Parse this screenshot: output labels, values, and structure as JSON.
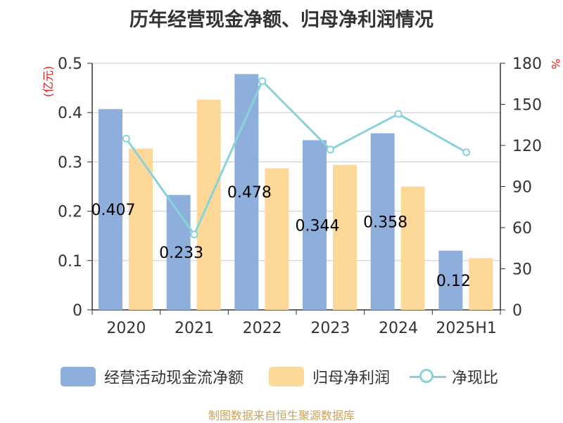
{
  "title": "历年经营现金净额、归母净利润情况",
  "source": "制图数据来自恒生聚源数据库",
  "colors": {
    "operating_cf": "#8eaedb",
    "net_profit": "#fdd898",
    "ratio": "#88d3d9",
    "axis": "#333333",
    "grid": "#cccccc",
    "unit_label": "#e02020",
    "source": "#c8a45c"
  },
  "chart_data": {
    "type": "bar",
    "title": "历年经营现金净额、归母净利润情况",
    "categories": [
      "2020",
      "2021",
      "2022",
      "2023",
      "2024",
      "2025H1"
    ],
    "y_left": {
      "label": "(亿元)",
      "min": 0,
      "max": 0.5,
      "ticks": [
        "0",
        "0.1",
        "0.2",
        "0.3",
        "0.4",
        "0.5"
      ]
    },
    "y_right": {
      "label": "%",
      "min": 0,
      "max": 180,
      "ticks": [
        "0",
        "30",
        "60",
        "90",
        "120",
        "150",
        "180"
      ]
    },
    "grid": true,
    "legend_position": "bottom",
    "series": [
      {
        "name": "经营活动现金流净额",
        "type": "bar",
        "axis": "left",
        "values": [
          0.407,
          0.233,
          0.478,
          0.344,
          0.358,
          0.12
        ],
        "labels": [
          "0.407",
          "0.233",
          "0.478",
          "0.344",
          "0.358",
          "0.12"
        ]
      },
      {
        "name": "归母净利润",
        "type": "bar",
        "axis": "left",
        "values": [
          0.327,
          0.426,
          0.287,
          0.294,
          0.25,
          0.105
        ]
      },
      {
        "name": "净现比",
        "type": "line",
        "axis": "right",
        "values": [
          125,
          55,
          167,
          117,
          143,
          115
        ]
      }
    ]
  }
}
